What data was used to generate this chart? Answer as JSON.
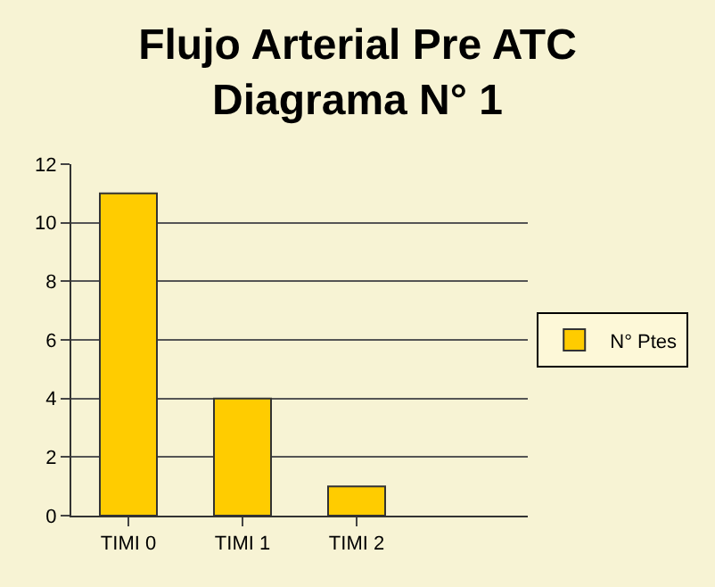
{
  "chart_data": {
    "type": "bar",
    "title": "Flujo Arterial Pre ATC\nDiagrama N° 1",
    "categories": [
      "TIMI 0",
      "TIMI 1",
      "TIMI 2",
      null
    ],
    "series": [
      {
        "name": "N° Ptes",
        "color": "#ffcc00",
        "values": [
          11,
          4,
          1,
          null
        ]
      }
    ],
    "ylim": [
      0,
      12
    ],
    "yticks": [
      0,
      2,
      4,
      6,
      8,
      10,
      12
    ],
    "grid": "y",
    "legend": "right"
  }
}
